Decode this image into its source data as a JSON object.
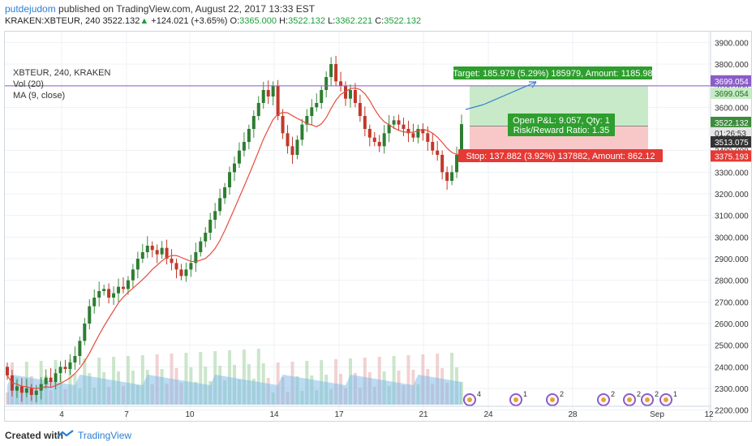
{
  "header": {
    "author": "putdejudom",
    "published_text": " published on TradingView.com, August 22, 2017 13:33 EST",
    "symbol": "KRAKEN:XBTEUR, 240",
    "last": "3522.132",
    "change_arrow": "▲",
    "change": "+124.021 (+3.65%)",
    "open_label": "O:",
    "open": "3365.000",
    "high_label": "H:",
    "high": "3522.132",
    "low_label": "L:",
    "low": "3362.221",
    "close_label": "C:",
    "close": "3522.132"
  },
  "legend": {
    "title": "XBTEUR, 240, KRAKEN",
    "vol": "Vol (20)",
    "ma": "MA (9, close)"
  },
  "footer": {
    "created_with": "Created with",
    "brand": "TradingView"
  },
  "colors": {
    "up": "#26a69a",
    "up_fill": "#3d8b3d",
    "down": "#c0392b",
    "ma": "#e74c3c",
    "target_zone": "#c8eac8",
    "stop_zone": "#f8c8c8",
    "hline": "#8a5cc9"
  },
  "chart_data": {
    "type": "candlestick",
    "symbol": "XBTEUR",
    "interval": "240",
    "exchange": "KRAKEN",
    "ylim": [
      2150,
      3950
    ],
    "y_ticks": [
      2200,
      2300,
      2400,
      2500,
      2600,
      2700,
      2800,
      2900,
      3000,
      3100,
      3200,
      3300,
      3400,
      3500,
      3600,
      3700,
      3800,
      3900
    ],
    "x_ticks": [
      "4",
      "7",
      "10",
      "14",
      "17",
      "21",
      "24",
      "28",
      "Sep",
      "12"
    ],
    "price_labels": {
      "hline": "3699.054",
      "target_level": "3699.054",
      "last": "3522.132",
      "countdown": "01:26:53",
      "entry": "3513.075",
      "stop_level": "3375.193"
    },
    "horizontal_line": 3699.054,
    "position": {
      "entry": 3513.075,
      "target": 3699.054,
      "stop": 3375.193,
      "target_label": "Target: 185.979 (5.29%) 185979, Amount: 1185.98",
      "pnl_label": "Open P&L: 9.057, Qty: 1",
      "rr_label": "Risk/Reward Ratio: 1.35",
      "stop_label": "Stop: 137.882 (3.92%) 137882, Amount: 862.12"
    },
    "closes": [
      2360,
      2290,
      2310,
      2280,
      2300,
      2270,
      2290,
      2320,
      2350,
      2330,
      2370,
      2400,
      2390,
      2420,
      2450,
      2520,
      2600,
      2680,
      2720,
      2750,
      2760,
      2720,
      2740,
      2770,
      2760,
      2800,
      2850,
      2900,
      2930,
      2960,
      2940,
      2920,
      2950,
      2900,
      2880,
      2850,
      2820,
      2850,
      2880,
      2930,
      2980,
      3020,
      3080,
      3120,
      3180,
      3230,
      3300,
      3340,
      3400,
      3440,
      3500,
      3560,
      3620,
      3680,
      3650,
      3700,
      3560,
      3480,
      3420,
      3380,
      3450,
      3520,
      3560,
      3600,
      3620,
      3680,
      3740,
      3800,
      3720,
      3700,
      3640,
      3680,
      3620,
      3560,
      3500,
      3460,
      3440,
      3420,
      3480,
      3520,
      3540,
      3520,
      3500,
      3480,
      3460,
      3500,
      3480,
      3440,
      3400,
      3380,
      3300,
      3260,
      3300,
      3380,
      3522
    ],
    "annotations": [
      "4",
      "1",
      "2",
      "2",
      "2",
      "2",
      "1"
    ]
  }
}
